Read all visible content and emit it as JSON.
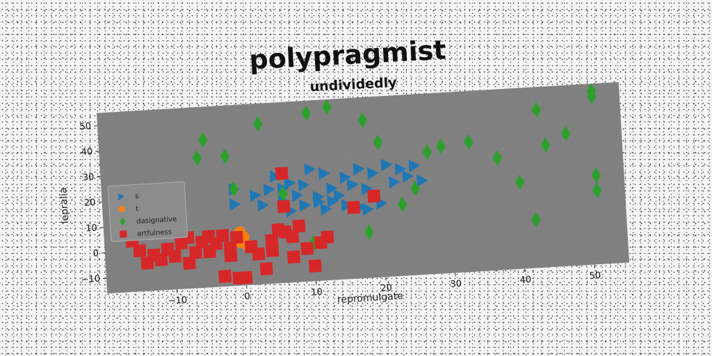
{
  "chart_data": {
    "type": "scatter",
    "title": "polypragmist",
    "subtitle": "undividedly",
    "xlabel": "repromulgate",
    "ylabel": "lepralia",
    "xlim": [
      -20,
      55
    ],
    "ylim": [
      -16,
      55
    ],
    "xticks": [
      -10,
      0,
      10,
      20,
      30,
      40,
      50
    ],
    "yticks": [
      -10,
      0,
      10,
      20,
      30,
      40,
      50
    ],
    "grid": false,
    "legend_position": "center-left",
    "series": [
      {
        "name": "s",
        "marker": "triangle-right",
        "color": "#1f77b4",
        "points": [
          [
            -1,
            22
          ],
          [
            -1,
            16
          ],
          [
            2,
            19
          ],
          [
            3,
            15
          ],
          [
            5,
            26
          ],
          [
            4,
            21
          ],
          [
            6,
            21
          ],
          [
            7,
            23
          ],
          [
            8,
            18
          ],
          [
            9,
            14
          ],
          [
            10,
            28
          ],
          [
            11,
            17
          ],
          [
            12,
            26
          ],
          [
            13,
            20
          ],
          [
            14,
            17
          ],
          [
            15,
            24
          ],
          [
            12,
            12
          ],
          [
            16,
            21
          ],
          [
            17,
            27
          ],
          [
            18,
            19
          ],
          [
            19,
            25
          ],
          [
            20,
            13
          ],
          [
            21,
            28
          ],
          [
            22,
            21
          ],
          [
            23,
            26
          ],
          [
            24,
            23
          ],
          [
            25,
            27
          ],
          [
            26,
            21
          ],
          [
            9,
            22
          ],
          [
            11,
            15
          ],
          [
            13,
            15
          ],
          [
            18,
            11
          ],
          [
            15,
            13
          ],
          [
            17,
            12
          ],
          [
            6,
            16
          ],
          [
            7,
            12
          ]
        ]
      },
      {
        "name": "t",
        "marker": "circle",
        "color": "#ff7f0e",
        "points": [
          [
            -0.5,
            5
          ],
          [
            0,
            3
          ],
          [
            -0.5,
            1
          ],
          [
            0.3,
            0
          ]
        ]
      },
      {
        "name": "dasignative",
        "marker": "diamond",
        "color": "#2ca02c",
        "points": [
          [
            -5,
            42
          ],
          [
            -6,
            35
          ],
          [
            -2,
            35
          ],
          [
            3,
            47
          ],
          [
            10,
            50
          ],
          [
            13,
            52
          ],
          [
            18,
            46
          ],
          [
            20,
            37
          ],
          [
            23,
            12
          ],
          [
            25,
            18
          ],
          [
            27,
            32
          ],
          [
            29,
            34
          ],
          [
            33,
            35
          ],
          [
            37,
            28
          ],
          [
            40,
            18
          ],
          [
            42,
            3
          ],
          [
            43,
            46
          ],
          [
            44,
            32
          ],
          [
            47,
            36
          ],
          [
            51,
            50
          ],
          [
            51,
            52
          ],
          [
            51,
            19
          ],
          [
            51,
            13
          ],
          [
            18,
            2
          ],
          [
            10,
            -1
          ],
          [
            6,
            19
          ],
          [
            -1,
            22
          ]
        ]
      },
      {
        "name": "artfulness",
        "marker": "square",
        "color": "#d62728",
        "points": [
          [
            -16,
            4
          ],
          [
            -15,
            0
          ],
          [
            -14,
            -5
          ],
          [
            -13,
            -2
          ],
          [
            -12,
            -4
          ],
          [
            -11,
            0
          ],
          [
            -10,
            -3
          ],
          [
            -9,
            2
          ],
          [
            -8,
            4
          ],
          [
            -8,
            -6
          ],
          [
            -7,
            -2
          ],
          [
            -6,
            2
          ],
          [
            -5,
            4
          ],
          [
            -5,
            -2
          ],
          [
            -4,
            1
          ],
          [
            -3,
            4
          ],
          [
            -2,
            -1
          ],
          [
            -1,
            3
          ],
          [
            -2,
            -4
          ],
          [
            -3,
            -12
          ],
          [
            0,
            -13
          ],
          [
            1,
            -1
          ],
          [
            2,
            -4
          ],
          [
            3,
            -10
          ],
          [
            4,
            1
          ],
          [
            4,
            -3
          ],
          [
            5,
            5
          ],
          [
            6,
            4
          ],
          [
            7,
            2
          ],
          [
            7,
            -6
          ],
          [
            8,
            6
          ],
          [
            6,
            14
          ],
          [
            9,
            -3
          ],
          [
            10,
            -10
          ],
          [
            11,
            -1
          ],
          [
            12,
            1
          ],
          [
            16,
            12
          ],
          [
            19,
            16
          ],
          [
            6,
            27
          ],
          [
            -1,
            -13
          ]
        ]
      }
    ]
  }
}
